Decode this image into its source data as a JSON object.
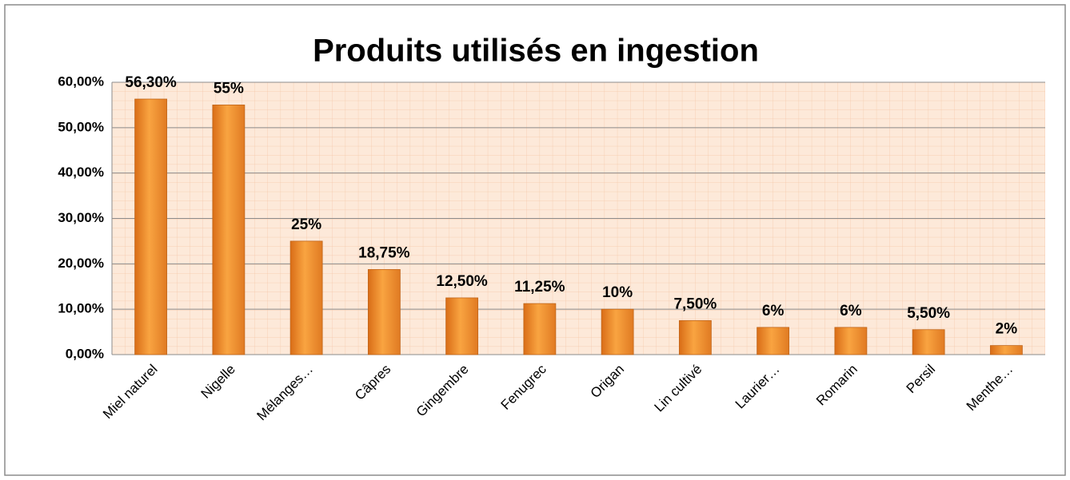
{
  "chart_data": {
    "type": "bar",
    "title": "Produits utilisés en ingestion",
    "categories": [
      "Miel naturel",
      "Nigelle",
      "Mélanges…",
      "Câpres",
      "Gingembre",
      "Fenugrec",
      "Origan",
      "Lin cultivé",
      "Laurier…",
      "Romarin",
      "Persil",
      "Menthe…"
    ],
    "values": [
      56.3,
      55,
      25,
      18.75,
      12.5,
      11.25,
      10,
      7.5,
      6,
      6,
      5.5,
      2
    ],
    "value_labels": [
      "56,30%",
      "55%",
      "25%",
      "18,75%",
      "12,50%",
      "11,25%",
      "10%",
      "7,50%",
      "6%",
      "6%",
      "5,50%",
      "2%"
    ],
    "color": "#f39b3b",
    "ylim": [
      0,
      60
    ],
    "yticks": [
      {
        "value": 0,
        "label": "0,00%"
      },
      {
        "value": 10,
        "label": "10,00%"
      },
      {
        "value": 20,
        "label": "20,00%"
      },
      {
        "value": 30,
        "label": "30,00%"
      },
      {
        "value": 40,
        "label": "40,00%"
      },
      {
        "value": 50,
        "label": "50,00%"
      },
      {
        "value": 60,
        "label": "60,00%"
      }
    ],
    "grid": true
  }
}
